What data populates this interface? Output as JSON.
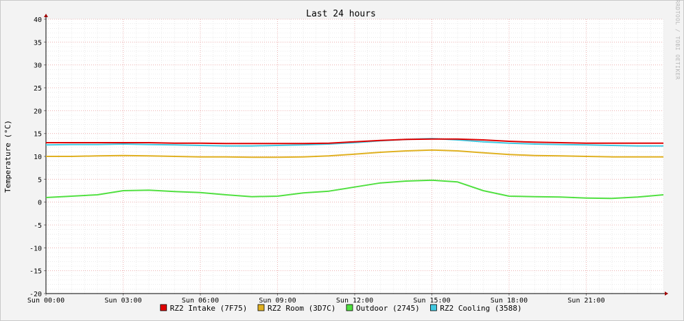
{
  "chart_data": {
    "type": "line",
    "title": "Last 24 hours",
    "ylabel": "Temperature (°C)",
    "xlabel": "",
    "watermark": "RRDTOOL / TOBI OETIKER",
    "ylim": [
      -20,
      40
    ],
    "yticks": [
      -20,
      -15,
      -10,
      -5,
      0,
      5,
      10,
      15,
      20,
      25,
      30,
      35,
      40
    ],
    "ytick_labels": [
      "-20",
      "-15",
      "-10",
      "-5",
      "0",
      "5",
      "10",
      "15",
      "20",
      "25",
      "30",
      "35",
      "40"
    ],
    "xlim": [
      0,
      24
    ],
    "xticks": [
      0,
      3,
      6,
      9,
      12,
      15,
      18,
      21
    ],
    "xtick_labels": [
      "Sun 00:00",
      "Sun 03:00",
      "Sun 06:00",
      "Sun 09:00",
      "Sun 12:00",
      "Sun 15:00",
      "Sun 18:00",
      "Sun 21:00"
    ],
    "grid": true,
    "legend_position": "bottom",
    "x": [
      0,
      1,
      2,
      3,
      4,
      5,
      6,
      7,
      8,
      9,
      10,
      11,
      12,
      13,
      14,
      15,
      16,
      17,
      18,
      19,
      20,
      21,
      22,
      23,
      24
    ],
    "series": [
      {
        "name": "RZ2 Intake (7F75)",
        "color": "#e00000",
        "values": [
          13.0,
          13.0,
          13.0,
          13.0,
          13.0,
          12.9,
          12.9,
          12.8,
          12.8,
          12.8,
          12.8,
          12.9,
          13.2,
          13.5,
          13.7,
          13.8,
          13.8,
          13.6,
          13.3,
          13.1,
          13.0,
          12.9,
          12.9,
          12.9,
          12.9
        ]
      },
      {
        "name": "RZ2 Room (3D7C)",
        "color": "#e0b020",
        "values": [
          10.0,
          10.0,
          10.1,
          10.2,
          10.1,
          10.0,
          9.9,
          9.9,
          9.8,
          9.8,
          9.9,
          10.1,
          10.5,
          10.9,
          11.2,
          11.4,
          11.2,
          10.8,
          10.4,
          10.2,
          10.1,
          10.0,
          9.9,
          9.9,
          9.9
        ]
      },
      {
        "name": "Outdoor (2745)",
        "color": "#50e040",
        "values": [
          1.0,
          1.3,
          1.6,
          2.5,
          2.6,
          2.3,
          2.1,
          1.6,
          1.2,
          1.3,
          2.0,
          2.4,
          3.3,
          4.2,
          4.6,
          4.8,
          4.4,
          2.5,
          1.3,
          1.2,
          1.1,
          0.9,
          0.8,
          1.1,
          1.6
        ]
      },
      {
        "name": "RZ2 Cooling (3588)",
        "color": "#40c8e0",
        "values": [
          12.5,
          12.6,
          12.6,
          12.7,
          12.6,
          12.5,
          12.4,
          12.3,
          12.3,
          12.4,
          12.5,
          12.7,
          13.0,
          13.4,
          13.7,
          13.9,
          13.6,
          13.2,
          12.9,
          12.7,
          12.6,
          12.5,
          12.4,
          12.3,
          12.3
        ]
      }
    ]
  }
}
